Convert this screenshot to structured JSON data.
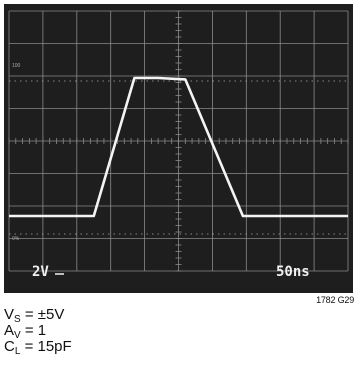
{
  "chart_data": {
    "type": "line",
    "title": "",
    "xlabel": "",
    "ylabel": "",
    "grid": true,
    "divisions": {
      "x": 10,
      "y": 8
    },
    "x": [
      0,
      1.0,
      2.5,
      3.7,
      4.4,
      5.2,
      6.9,
      10
    ],
    "series": [
      {
        "values": [
          0,
          0,
          0,
          100,
          100,
          99,
          0,
          0
        ]
      }
    ],
    "reference_marks": {
      "high": "100",
      "low": "0%"
    },
    "scale_readouts": {
      "vertical": "2V",
      "horizontal": "50ns"
    }
  },
  "figure_id": "1782 G29",
  "conditions": [
    {
      "symbol": "V",
      "sub": "S",
      "rest": " = ±5V"
    },
    {
      "symbol": "A",
      "sub": "V",
      "rest": " = 1"
    },
    {
      "symbol": "C",
      "sub": "L",
      "rest": " = 15pF"
    }
  ],
  "colors": {
    "screen": "#1e1e1e",
    "grid": "#8a8a8a",
    "trace": "#f4f4f4"
  }
}
